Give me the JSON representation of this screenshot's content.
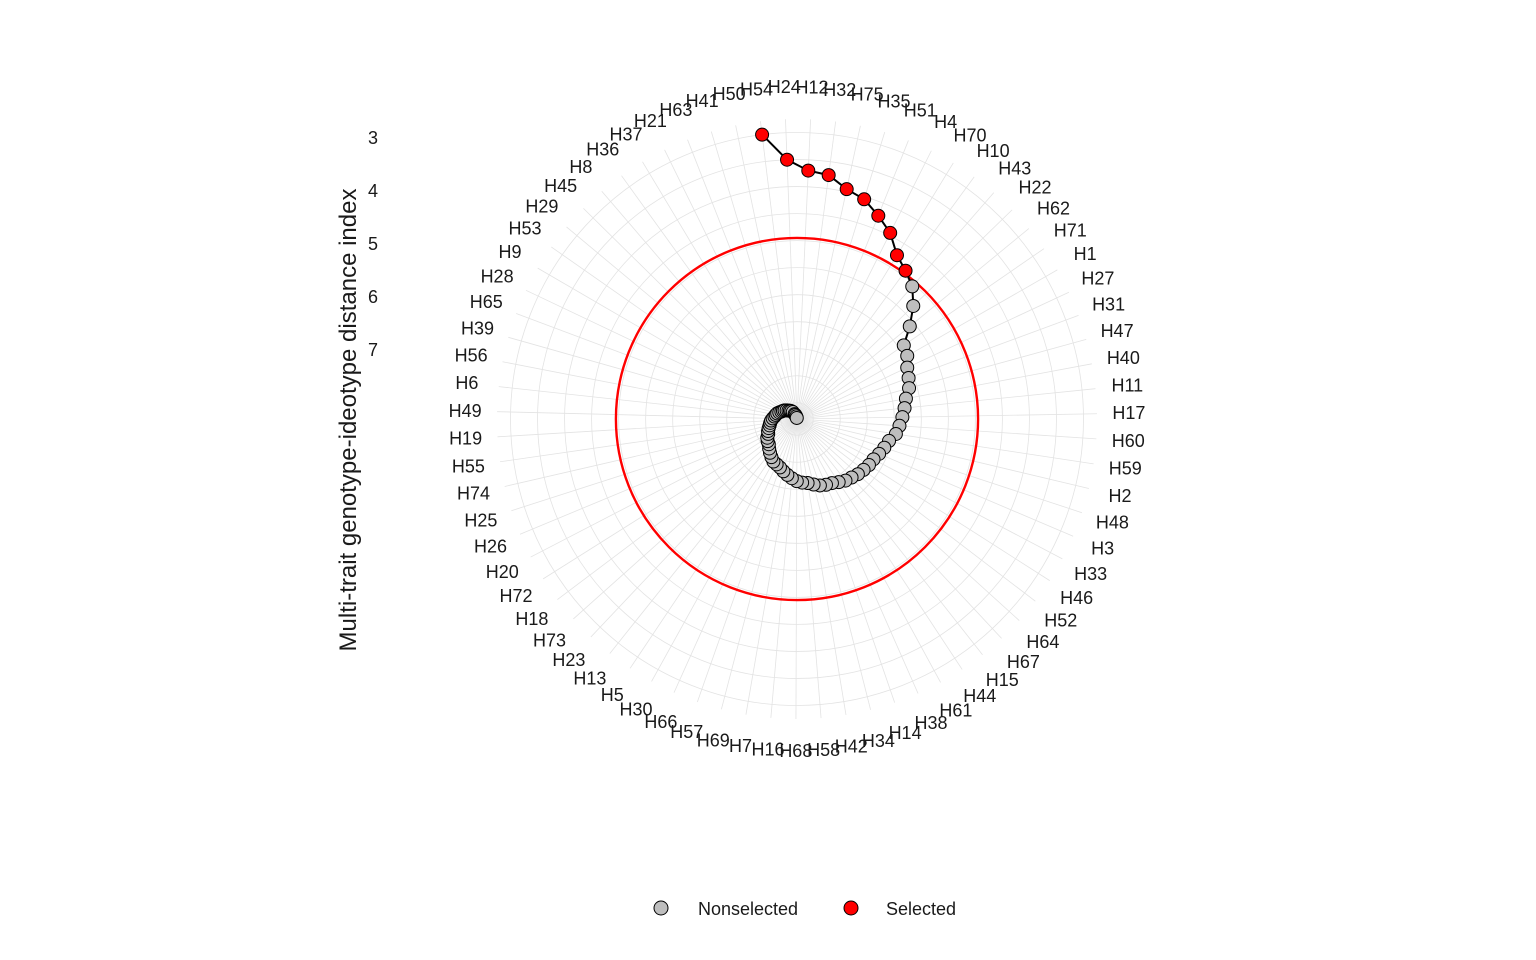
{
  "chart_data": {
    "type": "scatter",
    "subtype": "radial line + points (polar, reversed radius)",
    "ylabel": "Multi-trait genotype-ideotype distance index",
    "r_ticks": [
      3,
      4,
      5,
      6,
      7
    ],
    "r_range": [
      2.75,
      8.3
    ],
    "threshold": 4.95,
    "colors": {
      "selected": "#ff0000",
      "nonselected": "#bebebe",
      "threshold_circle": "#ff0000",
      "line": "#000000",
      "grid": "#e3e3e3"
    },
    "legend": {
      "position": "bottom",
      "items": [
        {
          "label": "Nonselected",
          "color": "#bebebe"
        },
        {
          "label": "Selected",
          "color": "#ff0000"
        }
      ]
    },
    "categories": [
      "H54",
      "H24",
      "H12",
      "H32",
      "H75",
      "H35",
      "H51",
      "H4",
      "H70",
      "H10",
      "H43",
      "H22",
      "H62",
      "H71",
      "H1",
      "H27",
      "H31",
      "H47",
      "H40",
      "H11",
      "H17",
      "H60",
      "H59",
      "H2",
      "H48",
      "H3",
      "H33",
      "H46",
      "H52",
      "H64",
      "H67",
      "H15",
      "H44",
      "H61",
      "H38",
      "H14",
      "H34",
      "H42",
      "H58",
      "H68",
      "H16",
      "H7",
      "H69",
      "H57",
      "H66",
      "H30",
      "H5",
      "H13",
      "H23",
      "H73",
      "H18",
      "H72",
      "H20",
      "H26",
      "H25",
      "H74",
      "H55",
      "H19",
      "H49",
      "H6",
      "H56",
      "H39",
      "H65",
      "H28",
      "H9",
      "H53",
      "H29",
      "H45",
      "H8",
      "H36",
      "H37",
      "H21",
      "H63",
      "H41",
      "H50"
    ],
    "values": [
      3.0,
      3.5,
      3.7,
      3.75,
      3.95,
      4.05,
      4.25,
      4.45,
      4.75,
      4.9,
      5.05,
      5.3,
      5.6,
      5.9,
      5.95,
      6.05,
      6.1,
      6.15,
      6.25,
      6.3,
      6.35,
      6.4,
      6.45,
      6.55,
      6.6,
      6.65,
      6.7,
      6.72,
      6.75,
      6.78,
      6.82,
      6.85,
      6.9,
      6.95,
      6.97,
      7.0,
      7.05,
      7.1,
      7.12,
      7.15,
      7.2,
      7.25,
      7.3,
      7.35,
      7.38,
      7.4,
      7.45,
      7.5,
      7.55,
      7.6,
      7.62,
      7.65,
      7.7,
      7.72,
      7.75,
      7.78,
      7.8,
      7.82,
      7.85,
      7.88,
      7.9,
      7.92,
      7.95,
      7.98,
      8.0,
      8.02,
      8.05,
      8.08,
      8.1,
      8.12,
      8.15,
      8.2,
      8.22,
      8.25,
      8.28
    ],
    "selected": [
      "H54",
      "H24",
      "H12",
      "H32",
      "H75",
      "H35",
      "H51",
      "H4",
      "H70",
      "H10"
    ]
  }
}
